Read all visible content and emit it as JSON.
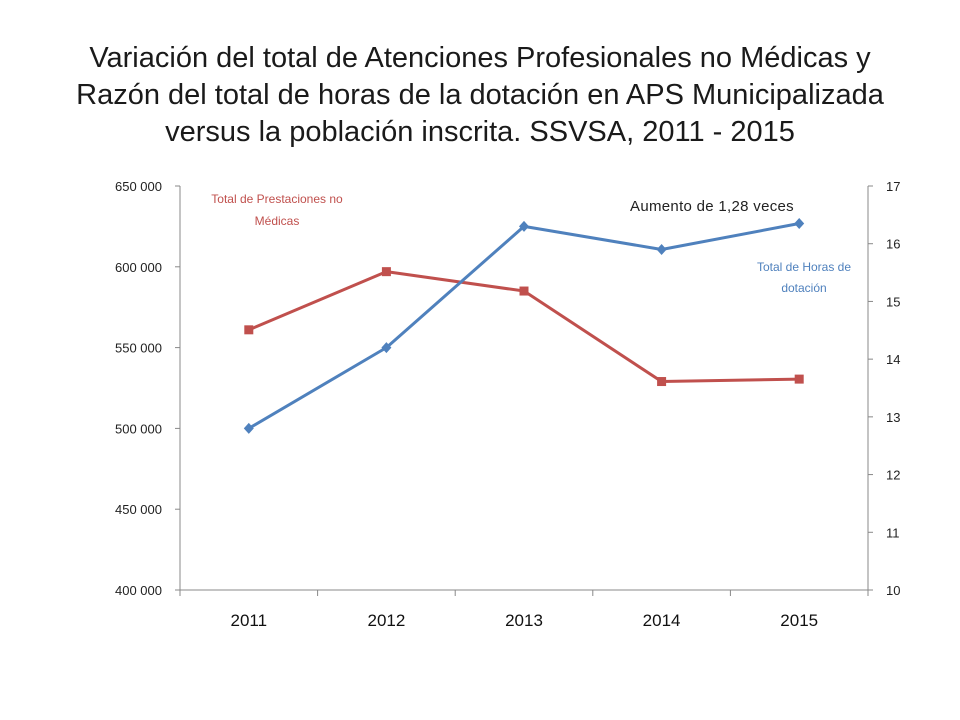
{
  "title_lines": [
    "Variación del total de Atenciones Profesionales no Médicas y",
    "Razón del total de horas de la dotación en APS Municipalizada",
    "versus la población inscrita. SSVSA, 2011 - 2015"
  ],
  "colors": {
    "prestaciones": "#c0504d",
    "horas": "#4f81bd",
    "axis": "#888888"
  },
  "chart_data": {
    "type": "line",
    "categories": [
      "2011",
      "2012",
      "2013",
      "2014",
      "2015"
    ],
    "series": [
      {
        "name": "Total de Prestaciones no Médicas",
        "axis": "left",
        "marker": "square",
        "values": [
          561000,
          597000,
          585000,
          529000,
          530500
        ]
      },
      {
        "name": "Total de Horas de dotación",
        "axis": "right",
        "marker": "diamond",
        "values": [
          12.8,
          14.2,
          16.3,
          15.9,
          16.35
        ]
      }
    ],
    "left_axis": {
      "ylim": [
        400000,
        650000
      ],
      "ticks": [
        400000,
        450000,
        500000,
        550000,
        600000,
        650000
      ],
      "tick_labels": [
        "400 000",
        "450 000",
        "500 000",
        "550 000",
        "600 000",
        "650 000"
      ]
    },
    "right_axis": {
      "ylim": [
        10,
        17
      ],
      "ticks": [
        10,
        11,
        12,
        13,
        14,
        15,
        16,
        17
      ],
      "tick_labels": [
        "10",
        "11",
        "12",
        "13",
        "14",
        "15",
        "16",
        "17"
      ]
    },
    "annotations": {
      "prestaciones_label": [
        "Total de Prestaciones no",
        "Médicas"
      ],
      "horas_label": [
        "Total de Horas de",
        "dotación"
      ],
      "note": "Aumento de 1,28 veces"
    },
    "grid": false,
    "legend": "none"
  }
}
